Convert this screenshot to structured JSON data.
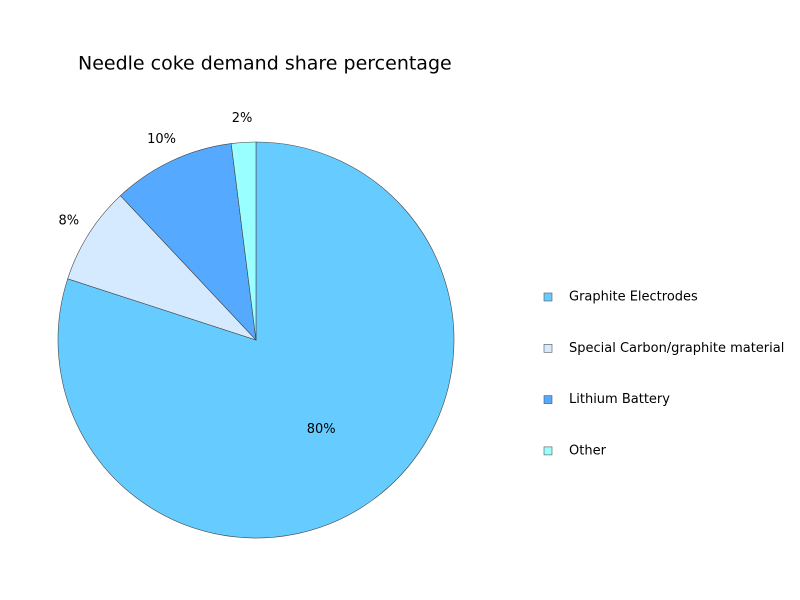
{
  "chart_data": {
    "type": "pie",
    "title": "Needle coke demand share percentage",
    "categories": [
      "Graphite Electrodes",
      "Special Carbon/graphite material",
      "Lithium Battery",
      "Other"
    ],
    "values": [
      80,
      8,
      10,
      2
    ],
    "value_labels": [
      "80%",
      "8%",
      "10%",
      "2%"
    ],
    "colors": [
      "#66ccff",
      "#d6eaff",
      "#55aaff",
      "#99ffff"
    ],
    "legend": "right"
  }
}
